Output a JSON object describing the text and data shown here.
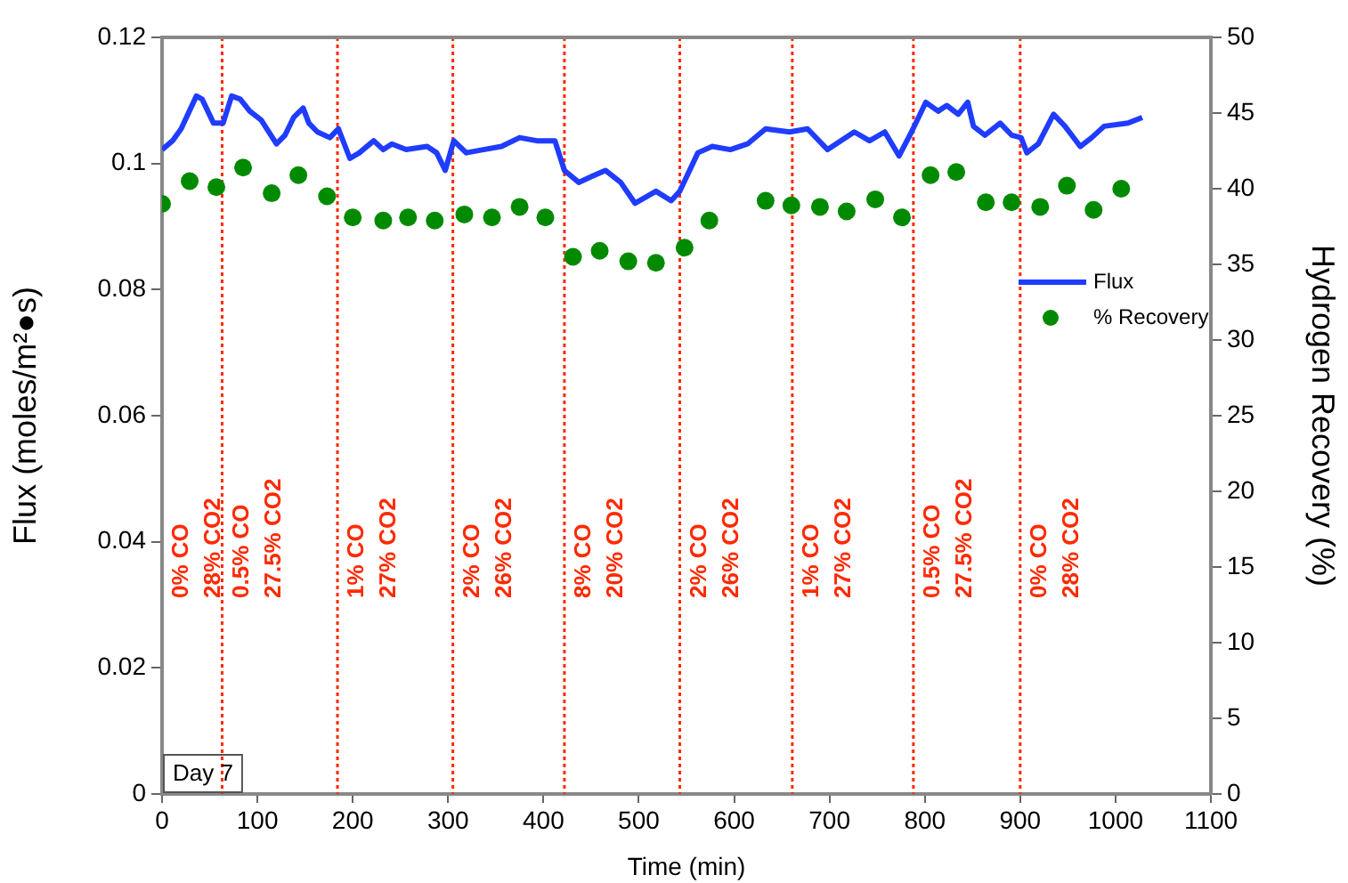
{
  "chart_data": {
    "type": "line",
    "xlabel": "Time (min)",
    "ylabel": "Flux (moles/m²●s)",
    "y2label": "Hydrogen Recovery (%)",
    "xlim": [
      0,
      1100
    ],
    "xticks": [
      0,
      100,
      200,
      300,
      400,
      500,
      600,
      700,
      800,
      900,
      1000,
      1100
    ],
    "ylim": [
      0,
      0.12
    ],
    "yticks": [
      0,
      0.02,
      0.04,
      0.06,
      0.08,
      0.1,
      0.12
    ],
    "y2lim": [
      0,
      50
    ],
    "y2ticks": [
      0,
      5,
      10,
      15,
      20,
      25,
      30,
      35,
      40,
      45,
      50
    ],
    "grid": false,
    "legend": "right",
    "series": [
      {
        "name": "Flux",
        "type": "line",
        "color": "#1f3cff",
        "line_style": "solid",
        "x": [
          0,
          11,
          20,
          36,
          42,
          54,
          64,
          73,
          82,
          92,
          104,
          120,
          129,
          138,
          148,
          154,
          163,
          176,
          185,
          197,
          207,
          222,
          232,
          241,
          256,
          278,
          288,
          297,
          306,
          319,
          337,
          356,
          375,
          393,
          412,
          422,
          437,
          450,
          465,
          481,
          496,
          518,
          534,
          543,
          562,
          577,
          596,
          614,
          633,
          658,
          677,
          698,
          726,
          742,
          758,
          773,
          786,
          801,
          814,
          823,
          835,
          845,
          851,
          863,
          879,
          891,
          901,
          907,
          919,
          935,
          947,
          963,
          975,
          988,
          1013,
          1028
        ],
        "values": [
          0.1022,
          0.1036,
          0.1055,
          0.1107,
          0.1102,
          0.1064,
          0.1064,
          0.1107,
          0.1102,
          0.1083,
          0.1069,
          0.1031,
          0.1045,
          0.1073,
          0.1088,
          0.1064,
          0.105,
          0.1041,
          0.1055,
          0.1008,
          0.1017,
          0.1036,
          0.1022,
          0.1031,
          0.1022,
          0.1027,
          0.1017,
          0.0989,
          0.1036,
          0.1017,
          0.1022,
          0.1027,
          0.1041,
          0.1036,
          0.1036,
          0.0989,
          0.097,
          0.0979,
          0.0989,
          0.097,
          0.0937,
          0.0956,
          0.0941,
          0.0956,
          0.1017,
          0.1027,
          0.1022,
          0.1031,
          0.1055,
          0.105,
          0.1055,
          0.1022,
          0.105,
          0.1036,
          0.105,
          0.1012,
          0.105,
          0.1097,
          0.1083,
          0.1092,
          0.1078,
          0.1097,
          0.1059,
          0.1045,
          0.1064,
          0.1045,
          0.1041,
          0.1017,
          0.1031,
          0.1078,
          0.1059,
          0.1027,
          0.1041,
          0.1059,
          0.1064,
          0.1073
        ]
      },
      {
        "name": "% Recovery",
        "type": "scatter",
        "axis": "y2",
        "color": "#008a00",
        "marker": "circle",
        "x": [
          0,
          29,
          57,
          85,
          115,
          143,
          173,
          200,
          232,
          258,
          286,
          317,
          346,
          375,
          402,
          431,
          459,
          489,
          518,
          548,
          574,
          633,
          660,
          690,
          718,
          748,
          776,
          806,
          833,
          864,
          891,
          921,
          949,
          977,
          1006
        ],
        "values": [
          39.0,
          40.5,
          40.1,
          41.4,
          39.7,
          40.9,
          39.5,
          38.1,
          37.9,
          38.1,
          37.9,
          38.3,
          38.1,
          38.8,
          38.1,
          35.5,
          35.9,
          35.2,
          35.1,
          36.1,
          37.9,
          39.2,
          38.9,
          38.8,
          38.5,
          39.3,
          38.1,
          40.9,
          41.1,
          39.1,
          39.1,
          38.8,
          40.2,
          38.6,
          40.0
        ]
      }
    ],
    "ref_lines": [
      {
        "axis": "x",
        "value": 63,
        "color": "#ff2a00",
        "line_style": "dotted"
      },
      {
        "axis": "x",
        "value": 184,
        "color": "#ff2a00",
        "line_style": "dotted"
      },
      {
        "axis": "x",
        "value": 305,
        "color": "#ff2a00",
        "line_style": "dotted"
      },
      {
        "axis": "x",
        "value": 422,
        "color": "#ff2a00",
        "line_style": "dotted"
      },
      {
        "axis": "x",
        "value": 543,
        "color": "#ff2a00",
        "line_style": "dotted"
      },
      {
        "axis": "x",
        "value": 661,
        "color": "#ff2a00",
        "line_style": "dotted"
      },
      {
        "axis": "x",
        "value": 788,
        "color": "#ff2a00",
        "line_style": "dotted"
      },
      {
        "axis": "x",
        "value": 900,
        "color": "#ff2a00",
        "line_style": "dotted"
      }
    ],
    "annotations": [
      "0% CO",
      "28% CO2",
      "0.5% CO",
      "27.5% CO2",
      "1% CO",
      "27% CO2",
      "2% CO",
      "26% CO2",
      "8% CO",
      "20% CO2",
      "2% CO",
      "26% CO2",
      "1% CO",
      "27% CO2",
      "0.5% CO",
      "27.5% CO2",
      "0% CO",
      "28% CO2",
      "Day 7"
    ]
  }
}
